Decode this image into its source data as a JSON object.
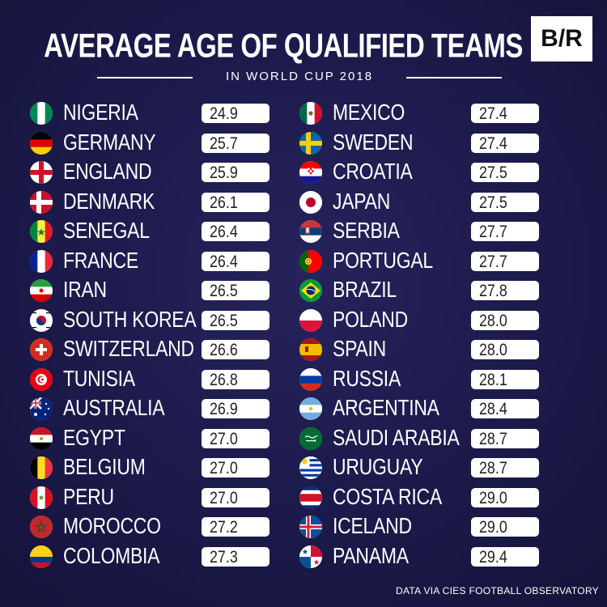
{
  "header": {
    "title": "AVERAGE AGE OF QUALIFIED TEAMS",
    "subtitle": "IN WORLD CUP 2018",
    "logo": "B/R"
  },
  "source": "DATA VIA CIES FOOTBALL OBSERVATORY",
  "chart_data": {
    "type": "table",
    "title": "AVERAGE AGE OF QUALIFIED TEAMS",
    "subtitle": "IN WORLD CUP 2018",
    "columns": [
      [
        {
          "team": "NIGERIA",
          "age": "24.9",
          "flag": "nigeria-flag"
        },
        {
          "team": "GERMANY",
          "age": "25.7",
          "flag": "germany-flag"
        },
        {
          "team": "ENGLAND",
          "age": "25.9",
          "flag": "england-flag"
        },
        {
          "team": "DENMARK",
          "age": "26.1",
          "flag": "denmark-flag"
        },
        {
          "team": "SENEGAL",
          "age": "26.4",
          "flag": "senegal-flag"
        },
        {
          "team": "FRANCE",
          "age": "26.4",
          "flag": "france-flag"
        },
        {
          "team": "IRAN",
          "age": "26.5",
          "flag": "iran-flag"
        },
        {
          "team": "SOUTH KOREA",
          "age": "26.5",
          "flag": "south-korea-flag"
        },
        {
          "team": "SWITZERLAND",
          "age": "26.6",
          "flag": "switzerland-flag"
        },
        {
          "team": "TUNISIA",
          "age": "26.8",
          "flag": "tunisia-flag"
        },
        {
          "team": "AUSTRALIA",
          "age": "26.9",
          "flag": "australia-flag"
        },
        {
          "team": "EGYPT",
          "age": "27.0",
          "flag": "egypt-flag"
        },
        {
          "team": "BELGIUM",
          "age": "27.0",
          "flag": "belgium-flag"
        },
        {
          "team": "PERU",
          "age": "27.0",
          "flag": "peru-flag"
        },
        {
          "team": "MOROCCO",
          "age": "27.2",
          "flag": "morocco-flag"
        },
        {
          "team": "COLOMBIA",
          "age": "27.3",
          "flag": "colombia-flag"
        }
      ],
      [
        {
          "team": "MEXICO",
          "age": "27.4",
          "flag": "mexico-flag"
        },
        {
          "team": "SWEDEN",
          "age": "27.4",
          "flag": "sweden-flag"
        },
        {
          "team": "CROATIA",
          "age": "27.5",
          "flag": "croatia-flag"
        },
        {
          "team": "JAPAN",
          "age": "27.5",
          "flag": "japan-flag"
        },
        {
          "team": "SERBIA",
          "age": "27.7",
          "flag": "serbia-flag"
        },
        {
          "team": "PORTUGAL",
          "age": "27.7",
          "flag": "portugal-flag"
        },
        {
          "team": "BRAZIL",
          "age": "27.8",
          "flag": "brazil-flag"
        },
        {
          "team": "POLAND",
          "age": "28.0",
          "flag": "poland-flag"
        },
        {
          "team": "SPAIN",
          "age": "28.0",
          "flag": "spain-flag"
        },
        {
          "team": "RUSSIA",
          "age": "28.1",
          "flag": "russia-flag"
        },
        {
          "team": "ARGENTINA",
          "age": "28.4",
          "flag": "argentina-flag"
        },
        {
          "team": "SAUDI ARABIA",
          "age": "28.7",
          "flag": "saudi-arabia-flag"
        },
        {
          "team": "URUGUAY",
          "age": "28.7",
          "flag": "uruguay-flag"
        },
        {
          "team": "COSTA RICA",
          "age": "29.0",
          "flag": "costa-rica-flag"
        },
        {
          "team": "ICELAND",
          "age": "29.0",
          "flag": "iceland-flag"
        },
        {
          "team": "PANAMA",
          "age": "29.4",
          "flag": "panama-flag"
        }
      ]
    ]
  }
}
